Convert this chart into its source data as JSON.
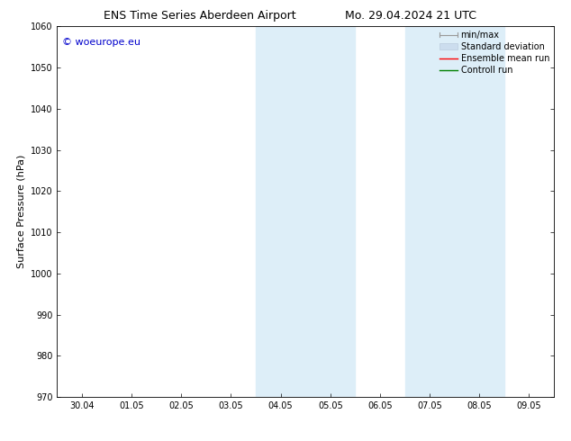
{
  "title_left": "ENS Time Series Aberdeen Airport",
  "title_right": "Mo. 29.04.2024 21 UTC",
  "ylabel": "Surface Pressure (hPa)",
  "ylim": [
    970,
    1060
  ],
  "yticks": [
    970,
    980,
    990,
    1000,
    1010,
    1020,
    1030,
    1040,
    1050,
    1060
  ],
  "xtick_labels": [
    "30.04",
    "01.05",
    "02.05",
    "03.05",
    "04.05",
    "05.05",
    "06.05",
    "07.05",
    "08.05",
    "09.05"
  ],
  "watermark": "© woeurope.eu",
  "watermark_color": "#0000cc",
  "background_color": "#ffffff",
  "plot_bg_color": "#ffffff",
  "shaded_regions": [
    {
      "xstart": 3.5,
      "xend": 5.5
    },
    {
      "xstart": 6.5,
      "xend": 8.5
    }
  ],
  "shade_color": "#ddeef8",
  "legend_items": [
    {
      "label": "min/max",
      "color": "#aaaaaa",
      "type": "errorbar"
    },
    {
      "label": "Standard deviation",
      "color": "#ccddee",
      "type": "fill"
    },
    {
      "label": "Ensemble mean run",
      "color": "#ff0000",
      "type": "line"
    },
    {
      "label": "Controll run",
      "color": "#008000",
      "type": "line"
    }
  ],
  "title_fontsize": 9,
  "tick_fontsize": 7,
  "ylabel_fontsize": 8,
  "watermark_fontsize": 8,
  "legend_fontsize": 7
}
